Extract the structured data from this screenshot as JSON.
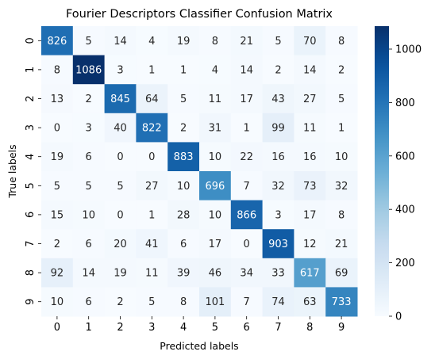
{
  "chart_data": {
    "type": "heatmap",
    "title": "Fourier Descriptors Classifier Confusion Matrix",
    "xlabel": "Predicted labels",
    "ylabel": "True labels",
    "x_categories": [
      "0",
      "1",
      "2",
      "3",
      "4",
      "5",
      "6",
      "7",
      "8",
      "9"
    ],
    "y_categories": [
      "0",
      "1",
      "2",
      "3",
      "4",
      "5",
      "6",
      "7",
      "8",
      "9"
    ],
    "values": [
      [
        826,
        5,
        14,
        4,
        19,
        8,
        21,
        5,
        70,
        8
      ],
      [
        8,
        1086,
        3,
        1,
        1,
        4,
        14,
        2,
        14,
        2
      ],
      [
        13,
        2,
        845,
        64,
        5,
        11,
        17,
        43,
        27,
        5
      ],
      [
        0,
        3,
        40,
        822,
        2,
        31,
        1,
        99,
        11,
        1
      ],
      [
        19,
        6,
        0,
        0,
        883,
        10,
        22,
        16,
        16,
        10
      ],
      [
        5,
        5,
        5,
        27,
        10,
        696,
        7,
        32,
        73,
        32
      ],
      [
        15,
        10,
        0,
        1,
        28,
        10,
        866,
        3,
        17,
        8
      ],
      [
        2,
        6,
        20,
        41,
        6,
        17,
        0,
        903,
        12,
        21
      ],
      [
        92,
        14,
        19,
        11,
        39,
        46,
        34,
        33,
        617,
        69
      ],
      [
        10,
        6,
        2,
        5,
        8,
        101,
        7,
        74,
        63,
        733
      ]
    ],
    "colormap": "Blues",
    "vmin": 0,
    "vmax": 1086,
    "colorbar_ticks": [
      0,
      200,
      400,
      600,
      800,
      1000
    ],
    "colorbar_tick_labels": [
      "0",
      "200",
      "400",
      "600",
      "800",
      "1000"
    ]
  }
}
